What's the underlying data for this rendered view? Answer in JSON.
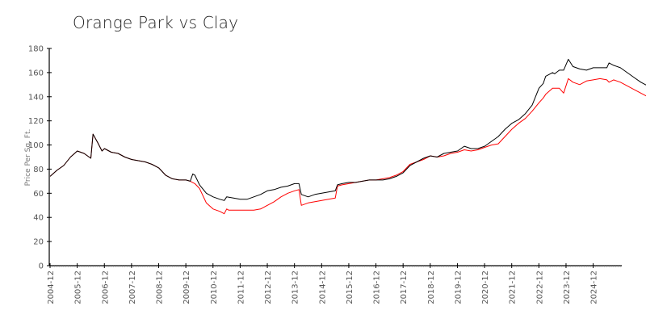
{
  "chart_data": {
    "type": "line",
    "title": "Orange Park vs Clay",
    "xlabel": "",
    "ylabel": "Price Per Sq. Ft.",
    "ylim": [
      0,
      180
    ],
    "yticks": [
      0,
      20,
      40,
      60,
      80,
      100,
      120,
      140,
      160,
      180
    ],
    "xtick_labels": [
      "2004-12",
      "2005-12",
      "2006-12",
      "2007-12",
      "2008-12",
      "2009-12",
      "2010-12",
      "2011-12",
      "2012-12",
      "2013-12",
      "2014-12",
      "2015-12",
      "2016-12",
      "2017-12",
      "2018-12",
      "2019-12",
      "2020-12",
      "2021-12",
      "2022-12",
      "2023-12",
      "2024-12"
    ],
    "grid": false,
    "legend": "none",
    "series": [
      {
        "name": "Orange Park",
        "color": "#000000",
        "points": [
          [
            2004.92,
            74
          ],
          [
            2005.17,
            79
          ],
          [
            2005.42,
            83
          ],
          [
            2005.67,
            90
          ],
          [
            2005.92,
            95
          ],
          [
            2006.17,
            93
          ],
          [
            2006.42,
            89
          ],
          [
            2006.5,
            109
          ],
          [
            2006.67,
            102
          ],
          [
            2006.83,
            95
          ],
          [
            2006.92,
            97
          ],
          [
            2007.17,
            94
          ],
          [
            2007.42,
            93
          ],
          [
            2007.67,
            90
          ],
          [
            2007.92,
            88
          ],
          [
            2008.17,
            87
          ],
          [
            2008.42,
            86
          ],
          [
            2008.67,
            84
          ],
          [
            2008.92,
            81
          ],
          [
            2009.17,
            75
          ],
          [
            2009.42,
            72
          ],
          [
            2009.67,
            71
          ],
          [
            2009.92,
            71
          ],
          [
            2010.08,
            70
          ],
          [
            2010.17,
            76
          ],
          [
            2010.25,
            75
          ],
          [
            2010.42,
            67
          ],
          [
            2010.67,
            60
          ],
          [
            2010.92,
            57
          ],
          [
            2011.17,
            55
          ],
          [
            2011.33,
            54
          ],
          [
            2011.42,
            57
          ],
          [
            2011.67,
            56
          ],
          [
            2011.92,
            55
          ],
          [
            2012.17,
            55
          ],
          [
            2012.42,
            57
          ],
          [
            2012.67,
            59
          ],
          [
            2012.92,
            62
          ],
          [
            2013.17,
            63
          ],
          [
            2013.42,
            65
          ],
          [
            2013.67,
            66
          ],
          [
            2013.92,
            68
          ],
          [
            2014.08,
            68
          ],
          [
            2014.17,
            59
          ],
          [
            2014.42,
            57
          ],
          [
            2014.67,
            59
          ],
          [
            2014.92,
            60
          ],
          [
            2015.17,
            61
          ],
          [
            2015.42,
            62
          ],
          [
            2015.5,
            67
          ],
          [
            2015.67,
            68
          ],
          [
            2015.92,
            69
          ],
          [
            2016.17,
            69
          ],
          [
            2016.42,
            70
          ],
          [
            2016.67,
            71
          ],
          [
            2016.92,
            71
          ],
          [
            2017.17,
            71
          ],
          [
            2017.42,
            72
          ],
          [
            2017.67,
            74
          ],
          [
            2017.92,
            77
          ],
          [
            2018.17,
            83
          ],
          [
            2018.42,
            86
          ],
          [
            2018.67,
            89
          ],
          [
            2018.92,
            91
          ],
          [
            2019.17,
            90
          ],
          [
            2019.42,
            93
          ],
          [
            2019.67,
            94
          ],
          [
            2019.92,
            95
          ],
          [
            2020.17,
            99
          ],
          [
            2020.42,
            97
          ],
          [
            2020.67,
            97
          ],
          [
            2020.92,
            99
          ],
          [
            2021.17,
            103
          ],
          [
            2021.42,
            107
          ],
          [
            2021.67,
            113
          ],
          [
            2021.92,
            118
          ],
          [
            2022.17,
            121
          ],
          [
            2022.42,
            126
          ],
          [
            2022.67,
            133
          ],
          [
            2022.92,
            147
          ],
          [
            2023.08,
            151
          ],
          [
            2023.17,
            157
          ],
          [
            2023.42,
            160
          ],
          [
            2023.5,
            159
          ],
          [
            2023.67,
            162
          ],
          [
            2023.83,
            162
          ],
          [
            2024.0,
            171
          ],
          [
            2024.17,
            165
          ],
          [
            2024.42,
            163
          ],
          [
            2024.67,
            162
          ],
          [
            2024.92,
            164
          ],
          [
            2025.17,
            164
          ],
          [
            2025.42,
            164
          ],
          [
            2025.5,
            168
          ],
          [
            2025.67,
            166
          ],
          [
            2025.92,
            164
          ],
          [
            2026.17,
            160
          ],
          [
            2026.42,
            156
          ],
          [
            2026.67,
            152
          ],
          [
            2026.92,
            149
          ],
          [
            2027.08,
            148
          ],
          [
            2027.17,
            147
          ],
          [
            2027.25,
            146
          ]
        ]
      },
      {
        "name": "Clay",
        "color": "#ff0000",
        "points": [
          [
            2004.92,
            74
          ],
          [
            2005.17,
            79
          ],
          [
            2005.42,
            83
          ],
          [
            2005.67,
            90
          ],
          [
            2005.92,
            95
          ],
          [
            2006.17,
            93
          ],
          [
            2006.42,
            89
          ],
          [
            2006.5,
            109
          ],
          [
            2006.67,
            102
          ],
          [
            2006.83,
            95
          ],
          [
            2006.92,
            97
          ],
          [
            2007.17,
            94
          ],
          [
            2007.42,
            93
          ],
          [
            2007.67,
            90
          ],
          [
            2007.92,
            88
          ],
          [
            2008.17,
            87
          ],
          [
            2008.42,
            86
          ],
          [
            2008.67,
            84
          ],
          [
            2008.92,
            81
          ],
          [
            2009.17,
            75
          ],
          [
            2009.42,
            72
          ],
          [
            2009.67,
            71
          ],
          [
            2009.92,
            71
          ],
          [
            2010.08,
            70
          ],
          [
            2010.25,
            68
          ],
          [
            2010.42,
            64
          ],
          [
            2010.67,
            52
          ],
          [
            2010.92,
            47
          ],
          [
            2011.17,
            45
          ],
          [
            2011.33,
            43
          ],
          [
            2011.42,
            47
          ],
          [
            2011.5,
            46
          ],
          [
            2011.67,
            46
          ],
          [
            2011.92,
            46
          ],
          [
            2012.17,
            46
          ],
          [
            2012.42,
            46
          ],
          [
            2012.67,
            47
          ],
          [
            2012.92,
            50
          ],
          [
            2013.17,
            53
          ],
          [
            2013.42,
            57
          ],
          [
            2013.67,
            60
          ],
          [
            2013.92,
            62
          ],
          [
            2014.08,
            63
          ],
          [
            2014.17,
            50
          ],
          [
            2014.42,
            52
          ],
          [
            2014.67,
            53
          ],
          [
            2014.92,
            54
          ],
          [
            2015.17,
            55
          ],
          [
            2015.42,
            56
          ],
          [
            2015.5,
            66
          ],
          [
            2015.67,
            67
          ],
          [
            2015.92,
            68
          ],
          [
            2016.17,
            69
          ],
          [
            2016.42,
            70
          ],
          [
            2016.67,
            71
          ],
          [
            2016.92,
            71
          ],
          [
            2017.17,
            72
          ],
          [
            2017.42,
            73
          ],
          [
            2017.67,
            75
          ],
          [
            2017.92,
            78
          ],
          [
            2018.17,
            84
          ],
          [
            2018.42,
            86
          ],
          [
            2018.67,
            88
          ],
          [
            2018.92,
            91
          ],
          [
            2019.17,
            90
          ],
          [
            2019.42,
            91
          ],
          [
            2019.67,
            93
          ],
          [
            2019.92,
            94
          ],
          [
            2020.17,
            96
          ],
          [
            2020.42,
            95
          ],
          [
            2020.67,
            96
          ],
          [
            2020.92,
            98
          ],
          [
            2021.17,
            100
          ],
          [
            2021.42,
            101
          ],
          [
            2021.67,
            107
          ],
          [
            2021.92,
            113
          ],
          [
            2022.17,
            118
          ],
          [
            2022.42,
            122
          ],
          [
            2022.67,
            128
          ],
          [
            2022.92,
            135
          ],
          [
            2023.08,
            139
          ],
          [
            2023.17,
            142
          ],
          [
            2023.42,
            147
          ],
          [
            2023.67,
            147
          ],
          [
            2023.83,
            143
          ],
          [
            2024.0,
            155
          ],
          [
            2024.17,
            152
          ],
          [
            2024.42,
            150
          ],
          [
            2024.67,
            153
          ],
          [
            2024.92,
            154
          ],
          [
            2025.17,
            155
          ],
          [
            2025.42,
            154
          ],
          [
            2025.5,
            152
          ],
          [
            2025.67,
            154
          ],
          [
            2025.92,
            152
          ],
          [
            2026.17,
            149
          ],
          [
            2026.42,
            146
          ],
          [
            2026.67,
            143
          ],
          [
            2026.92,
            140
          ],
          [
            2027.08,
            139
          ],
          [
            2027.17,
            137
          ],
          [
            2027.25,
            137
          ]
        ]
      }
    ]
  }
}
